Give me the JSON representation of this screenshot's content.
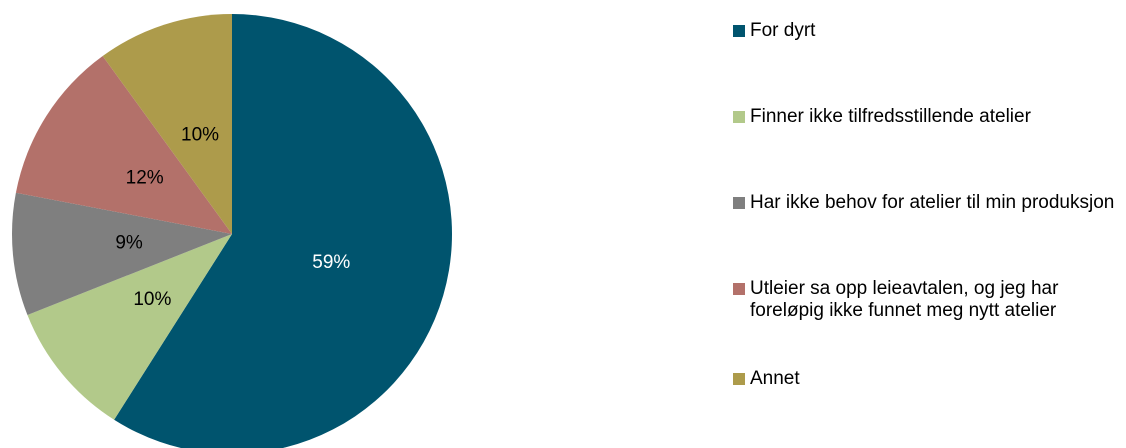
{
  "chart_data": {
    "type": "pie",
    "categories": [
      "For dyrt",
      "Finner ikke tilfredsstillende atelier",
      "Har ikke behov for atelier til min produksjon",
      "Utleier sa opp leieavtalen, og jeg har foreløpig ikke funnet meg nytt atelier",
      "Annet"
    ],
    "values": [
      59,
      10,
      9,
      12,
      10
    ],
    "value_labels": [
      "59%",
      "10%",
      "9%",
      "12%",
      "10%"
    ],
    "colors": [
      "#00546e",
      "#b2c98a",
      "#7f7f7f",
      "#b3716a",
      "#ad9b4b"
    ]
  }
}
